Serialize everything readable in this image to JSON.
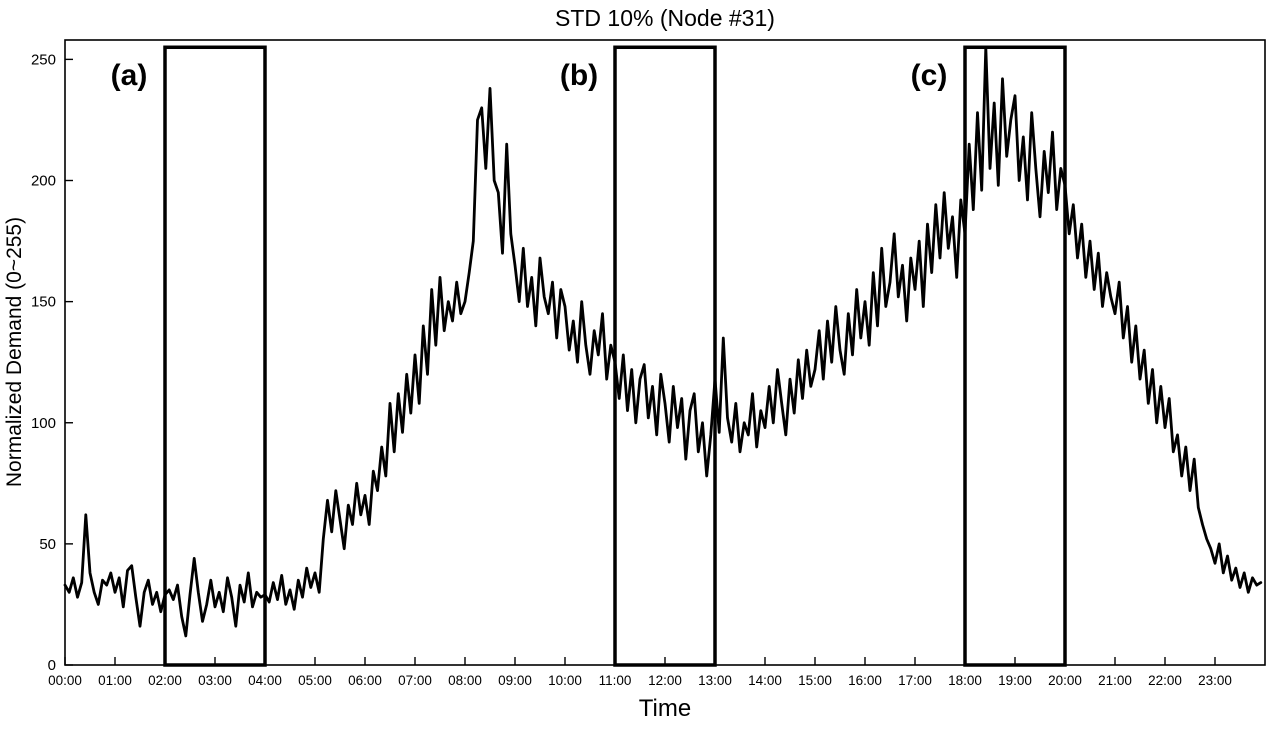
{
  "chart_data": {
    "type": "line",
    "title": "STD 10% (Node #31)",
    "xlabel": "Time",
    "ylabel": "Normalized Demand (0~255)",
    "ylim": [
      0,
      258
    ],
    "yticks": [
      0,
      50,
      100,
      150,
      200,
      250
    ],
    "x_hours": 24,
    "sample_interval_minutes": 5,
    "grid": false,
    "line_width": 2.8,
    "xtick_labels": [
      "00:00",
      "01:00",
      "02:00",
      "03:00",
      "04:00",
      "05:00",
      "06:00",
      "07:00",
      "08:00",
      "09:00",
      "10:00",
      "11:00",
      "12:00",
      "13:00",
      "14:00",
      "15:00",
      "16:00",
      "17:00",
      "18:00",
      "19:00",
      "20:00",
      "21:00",
      "22:00",
      "23:00"
    ],
    "series": [
      {
        "name": "Normalized Demand",
        "color": "#000000",
        "values": [
          33,
          30,
          36,
          28,
          34,
          62,
          38,
          30,
          25,
          35,
          33,
          38,
          30,
          36,
          24,
          39,
          41,
          28,
          16,
          30,
          35,
          25,
          30,
          22,
          29,
          31,
          27,
          33,
          20,
          12,
          29,
          44,
          30,
          18,
          25,
          35,
          24,
          30,
          22,
          36,
          28,
          16,
          33,
          26,
          38,
          24,
          30,
          28,
          29,
          26,
          34,
          27,
          37,
          25,
          31,
          23,
          35,
          28,
          40,
          32,
          38,
          30,
          52,
          68,
          55,
          72,
          60,
          48,
          66,
          58,
          75,
          62,
          70,
          58,
          80,
          72,
          90,
          78,
          108,
          88,
          112,
          96,
          120,
          104,
          128,
          108,
          140,
          120,
          155,
          132,
          160,
          138,
          150,
          142,
          158,
          145,
          150,
          162,
          175,
          225,
          230,
          205,
          238,
          200,
          195,
          170,
          215,
          178,
          165,
          150,
          172,
          148,
          160,
          140,
          168,
          152,
          145,
          158,
          135,
          155,
          148,
          130,
          142,
          125,
          150,
          132,
          120,
          138,
          128,
          145,
          118,
          132,
          125,
          110,
          128,
          105,
          122,
          100,
          118,
          124,
          102,
          115,
          95,
          120,
          108,
          92,
          115,
          98,
          110,
          85,
          105,
          112,
          88,
          100,
          78,
          95,
          118,
          96,
          135,
          102,
          92,
          108,
          88,
          100,
          95,
          112,
          90,
          105,
          98,
          115,
          100,
          122,
          108,
          95,
          118,
          104,
          126,
          110,
          130,
          115,
          122,
          138,
          118,
          142,
          125,
          148,
          130,
          120,
          145,
          128,
          155,
          135,
          150,
          132,
          162,
          140,
          172,
          148,
          158,
          178,
          152,
          165,
          142,
          168,
          155,
          175,
          148,
          182,
          162,
          190,
          168,
          195,
          172,
          185,
          160,
          192,
          178,
          215,
          188,
          228,
          196,
          255,
          205,
          232,
          198,
          242,
          210,
          225,
          235,
          200,
          218,
          192,
          228,
          205,
          185,
          212,
          195,
          220,
          188,
          205,
          198,
          178,
          190,
          168,
          182,
          160,
          175,
          155,
          170,
          148,
          162,
          152,
          145,
          158,
          135,
          148,
          125,
          140,
          118,
          130,
          108,
          122,
          100,
          115,
          98,
          110,
          88,
          95,
          78,
          90,
          72,
          85,
          65,
          58,
          52,
          48,
          42,
          50,
          38,
          45,
          35,
          40,
          32,
          38,
          30,
          36,
          33,
          34
        ]
      }
    ],
    "annotations": {
      "box_color": "#000000",
      "box_line_width": 3.5,
      "boxes": [
        {
          "label": "(a)",
          "x_start_hour": 2,
          "x_end_hour": 4,
          "y_top_value": 255
        },
        {
          "label": "(b)",
          "x_start_hour": 11,
          "x_end_hour": 13,
          "y_top_value": 255
        },
        {
          "label": "(c)",
          "x_start_hour": 18,
          "x_end_hour": 20,
          "y_top_value": 255
        }
      ]
    }
  }
}
